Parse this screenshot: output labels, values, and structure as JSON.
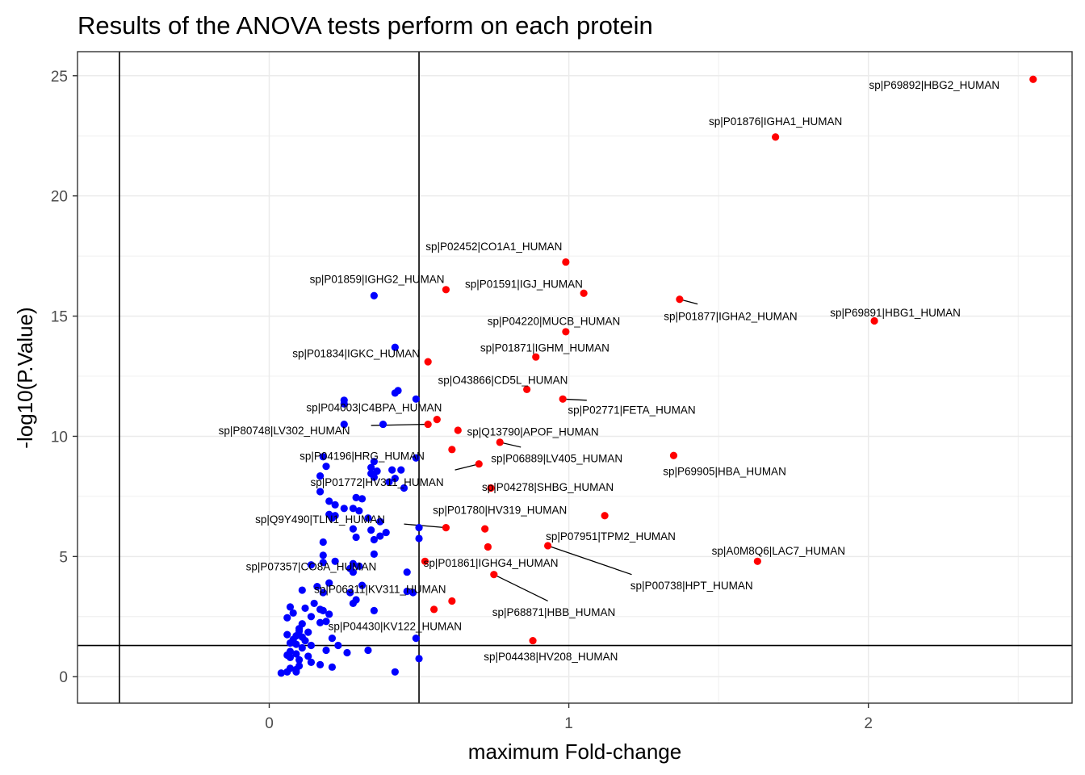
{
  "chart_data": {
    "type": "scatter",
    "title": "Results of the ANOVA tests perform on each protein",
    "xlabel": "maximum Fold-change",
    "ylabel": "-log10(P.Value)",
    "xlim": [
      -0.64,
      2.68
    ],
    "ylim": [
      -1.1,
      26
    ],
    "xticks": [
      0,
      1,
      2
    ],
    "yticks": [
      0,
      5,
      10,
      15,
      20,
      25
    ],
    "grid": true,
    "legend": "none",
    "threshold_lines": {
      "vertical": [
        -0.5,
        0.5
      ],
      "horizontal": [
        1.3
      ]
    },
    "colors": {
      "significant": "#ff0000",
      "non_significant": "#0000ff",
      "lines": "#000000",
      "grid": "#ebebeb"
    },
    "series": [
      {
        "group": "significant",
        "points": [
          {
            "x": 2.55,
            "y": 24.85
          },
          {
            "x": 1.69,
            "y": 22.45
          },
          {
            "x": 0.99,
            "y": 17.25
          },
          {
            "x": 0.59,
            "y": 16.1
          },
          {
            "x": 1.05,
            "y": 15.95
          },
          {
            "x": 1.37,
            "y": 15.7
          },
          {
            "x": 2.02,
            "y": 14.8
          },
          {
            "x": 0.99,
            "y": 14.35
          },
          {
            "x": 0.89,
            "y": 13.3
          },
          {
            "x": 0.53,
            "y": 13.1
          },
          {
            "x": 0.86,
            "y": 11.95
          },
          {
            "x": 0.98,
            "y": 11.55
          },
          {
            "x": 0.56,
            "y": 10.7
          },
          {
            "x": 0.53,
            "y": 10.5
          },
          {
            "x": 0.63,
            "y": 10.25
          },
          {
            "x": 0.77,
            "y": 9.75
          },
          {
            "x": 0.61,
            "y": 9.45
          },
          {
            "x": 1.35,
            "y": 9.2
          },
          {
            "x": 0.7,
            "y": 8.85
          },
          {
            "x": 0.74,
            "y": 7.85
          },
          {
            "x": 1.12,
            "y": 6.7
          },
          {
            "x": 0.59,
            "y": 6.2
          },
          {
            "x": 0.72,
            "y": 6.15
          },
          {
            "x": 0.93,
            "y": 5.45
          },
          {
            "x": 0.73,
            "y": 5.4
          },
          {
            "x": 0.52,
            "y": 4.8
          },
          {
            "x": 1.63,
            "y": 4.8
          },
          {
            "x": 0.75,
            "y": 4.25
          },
          {
            "x": 0.61,
            "y": 3.15
          },
          {
            "x": 0.55,
            "y": 2.8
          },
          {
            "x": 0.88,
            "y": 1.5
          }
        ]
      },
      {
        "group": "non_significant",
        "points": [
          {
            "x": 0.35,
            "y": 15.85
          },
          {
            "x": 0.42,
            "y": 13.7
          },
          {
            "x": 0.42,
            "y": 11.8
          },
          {
            "x": 0.43,
            "y": 11.9
          },
          {
            "x": 0.25,
            "y": 11.35
          },
          {
            "x": 0.25,
            "y": 11.5
          },
          {
            "x": 0.49,
            "y": 11.55
          },
          {
            "x": 0.25,
            "y": 10.5
          },
          {
            "x": 0.38,
            "y": 10.5
          },
          {
            "x": 0.18,
            "y": 9.15
          },
          {
            "x": 0.49,
            "y": 9.1
          },
          {
            "x": 0.19,
            "y": 8.75
          },
          {
            "x": 0.34,
            "y": 8.7
          },
          {
            "x": 0.35,
            "y": 8.95
          },
          {
            "x": 0.36,
            "y": 8.55
          },
          {
            "x": 0.41,
            "y": 8.6
          },
          {
            "x": 0.44,
            "y": 8.6
          },
          {
            "x": 0.34,
            "y": 8.45
          },
          {
            "x": 0.17,
            "y": 8.35
          },
          {
            "x": 0.35,
            "y": 8.3
          },
          {
            "x": 0.4,
            "y": 8.1
          },
          {
            "x": 0.42,
            "y": 8.25
          },
          {
            "x": 0.45,
            "y": 7.85
          },
          {
            "x": 0.17,
            "y": 7.7
          },
          {
            "x": 0.29,
            "y": 7.45
          },
          {
            "x": 0.31,
            "y": 7.4
          },
          {
            "x": 0.2,
            "y": 7.3
          },
          {
            "x": 0.22,
            "y": 7.15
          },
          {
            "x": 0.25,
            "y": 7.0
          },
          {
            "x": 0.28,
            "y": 7.0
          },
          {
            "x": 0.3,
            "y": 6.9
          },
          {
            "x": 0.2,
            "y": 6.75
          },
          {
            "x": 0.22,
            "y": 6.7
          },
          {
            "x": 0.21,
            "y": 6.6
          },
          {
            "x": 0.33,
            "y": 6.6
          },
          {
            "x": 0.37,
            "y": 6.45
          },
          {
            "x": 0.5,
            "y": 6.2
          },
          {
            "x": 0.28,
            "y": 6.15
          },
          {
            "x": 0.34,
            "y": 6.1
          },
          {
            "x": 0.39,
            "y": 6.0
          },
          {
            "x": 0.37,
            "y": 5.85
          },
          {
            "x": 0.29,
            "y": 5.8
          },
          {
            "x": 0.5,
            "y": 5.75
          },
          {
            "x": 0.35,
            "y": 5.7
          },
          {
            "x": 0.18,
            "y": 5.6
          },
          {
            "x": 0.35,
            "y": 5.1
          },
          {
            "x": 0.18,
            "y": 5.05
          },
          {
            "x": 0.22,
            "y": 4.8
          },
          {
            "x": 0.18,
            "y": 4.75
          },
          {
            "x": 0.14,
            "y": 4.65
          },
          {
            "x": 0.28,
            "y": 4.7
          },
          {
            "x": 0.3,
            "y": 4.6
          },
          {
            "x": 0.27,
            "y": 4.5
          },
          {
            "x": 0.28,
            "y": 4.35
          },
          {
            "x": 0.46,
            "y": 4.35
          },
          {
            "x": 0.2,
            "y": 3.9
          },
          {
            "x": 0.31,
            "y": 3.8
          },
          {
            "x": 0.16,
            "y": 3.75
          },
          {
            "x": 0.11,
            "y": 3.6
          },
          {
            "x": 0.27,
            "y": 3.5
          },
          {
            "x": 0.46,
            "y": 3.55
          },
          {
            "x": 0.48,
            "y": 3.5
          },
          {
            "x": 0.18,
            "y": 3.5
          },
          {
            "x": 0.29,
            "y": 3.2
          },
          {
            "x": 0.28,
            "y": 3.05
          },
          {
            "x": 0.15,
            "y": 3.05
          },
          {
            "x": 0.07,
            "y": 2.9
          },
          {
            "x": 0.12,
            "y": 2.85
          },
          {
            "x": 0.17,
            "y": 2.8
          },
          {
            "x": 0.18,
            "y": 2.75
          },
          {
            "x": 0.35,
            "y": 2.75
          },
          {
            "x": 0.08,
            "y": 2.65
          },
          {
            "x": 0.2,
            "y": 2.6
          },
          {
            "x": 0.14,
            "y": 2.5
          },
          {
            "x": 0.06,
            "y": 2.45
          },
          {
            "x": 0.19,
            "y": 2.3
          },
          {
            "x": 0.17,
            "y": 2.25
          },
          {
            "x": 0.11,
            "y": 2.2
          },
          {
            "x": 0.1,
            "y": 2.0
          },
          {
            "x": 0.1,
            "y": 1.9
          },
          {
            "x": 0.13,
            "y": 1.85
          },
          {
            "x": 0.06,
            "y": 1.75
          },
          {
            "x": 0.09,
            "y": 1.7
          },
          {
            "x": 0.11,
            "y": 1.65
          },
          {
            "x": 0.21,
            "y": 1.6
          },
          {
            "x": 0.49,
            "y": 1.6
          },
          {
            "x": 0.08,
            "y": 1.55
          },
          {
            "x": 0.12,
            "y": 1.5
          },
          {
            "x": 0.07,
            "y": 1.4
          },
          {
            "x": 0.09,
            "y": 1.35
          },
          {
            "x": 0.14,
            "y": 1.3
          },
          {
            "x": 0.23,
            "y": 1.3
          },
          {
            "x": 0.11,
            "y": 1.2
          },
          {
            "x": 0.19,
            "y": 1.1
          },
          {
            "x": 0.33,
            "y": 1.1
          },
          {
            "x": 0.07,
            "y": 1.05
          },
          {
            "x": 0.26,
            "y": 1.0
          },
          {
            "x": 0.09,
            "y": 0.95
          },
          {
            "x": 0.06,
            "y": 0.9
          },
          {
            "x": 0.13,
            "y": 0.85
          },
          {
            "x": 0.07,
            "y": 0.8
          },
          {
            "x": 0.5,
            "y": 0.75
          },
          {
            "x": 0.1,
            "y": 0.7
          },
          {
            "x": 0.14,
            "y": 0.6
          },
          {
            "x": 0.17,
            "y": 0.5
          },
          {
            "x": 0.1,
            "y": 0.45
          },
          {
            "x": 0.21,
            "y": 0.4
          },
          {
            "x": 0.07,
            "y": 0.35
          },
          {
            "x": 0.09,
            "y": 0.3
          },
          {
            "x": 0.06,
            "y": 0.2
          },
          {
            "x": 0.09,
            "y": 0.2
          },
          {
            "x": 0.04,
            "y": 0.15
          },
          {
            "x": 0.42,
            "y": 0.2
          }
        ]
      }
    ],
    "annotations": [
      {
        "text": "sp|P69892|HBG2_HUMAN",
        "x": 2.55,
        "y": 24.85,
        "lx": 2.22,
        "ly": 24.62
      },
      {
        "text": "sp|P01876|IGHA1_HUMAN",
        "x": 1.69,
        "y": 22.45,
        "lx": 1.69,
        "ly": 23.12
      },
      {
        "text": "sp|P02452|CO1A1_HUMAN",
        "x": 0.99,
        "y": 17.25,
        "lx": 0.75,
        "ly": 17.9
      },
      {
        "text": "sp|P01859|IGHG2_HUMAN",
        "x": 0.59,
        "y": 16.1,
        "lx": 0.36,
        "ly": 16.55
      },
      {
        "text": "sp|P01591|IGJ_HUMAN",
        "x": 1.05,
        "y": 15.95,
        "lx": 0.85,
        "ly": 16.35
      },
      {
        "text": "sp|P01877|IGHA2_HUMAN",
        "x": 1.37,
        "y": 15.7,
        "lx": 1.54,
        "ly": 15.0,
        "leader": [
          1.43,
          15.5
        ]
      },
      {
        "text": "sp|P69891|HBG1_HUMAN",
        "x": 2.02,
        "y": 14.8,
        "lx": 2.09,
        "ly": 15.15
      },
      {
        "text": "sp|P04220|MUCB_HUMAN",
        "x": 0.99,
        "y": 14.35,
        "lx": 0.95,
        "ly": 14.8
      },
      {
        "text": "sp|P01871|IGHM_HUMAN",
        "x": 0.89,
        "y": 13.3,
        "lx": 0.92,
        "ly": 13.7
      },
      {
        "text": "sp|P01834|IGKC_HUMAN",
        "x": 0.53,
        "y": 13.1,
        "lx": 0.29,
        "ly": 13.45
      },
      {
        "text": "sp|O43866|CD5L_HUMAN",
        "x": 0.86,
        "y": 11.95,
        "lx": 0.78,
        "ly": 12.35
      },
      {
        "text": "sp|P02771|FETA_HUMAN",
        "x": 0.98,
        "y": 11.55,
        "lx": 1.21,
        "ly": 11.1,
        "leader": [
          1.06,
          11.5
        ]
      },
      {
        "text": "sp|P04003|C4BPA_HUMAN",
        "x": 0.56,
        "y": 10.7,
        "lx": 0.35,
        "ly": 11.2
      },
      {
        "text": "sp|P80748|LV302_HUMAN",
        "x": 0.53,
        "y": 10.5,
        "lx": 0.05,
        "ly": 10.25,
        "leader": [
          0.34,
          10.45
        ]
      },
      {
        "text": "sp|Q13790|APOF_HUMAN",
        "x": 0.77,
        "y": 9.75,
        "lx": 0.88,
        "ly": 10.2
      },
      {
        "text": "sp|P06889|LV405_HUMAN",
        "x": 0.77,
        "y": 9.75,
        "lx": 0.96,
        "ly": 9.1,
        "leader": [
          0.84,
          9.55
        ]
      },
      {
        "text": "sp|P04196|HRG_HUMAN",
        "x": 0.61,
        "y": 9.45,
        "lx": 0.31,
        "ly": 9.2
      },
      {
        "text": "sp|P69905|HBA_HUMAN",
        "x": 1.35,
        "y": 9.2,
        "lx": 1.52,
        "ly": 8.55
      },
      {
        "text": "sp|P01772|HV311_HUMAN",
        "x": 0.7,
        "y": 8.85,
        "lx": 0.36,
        "ly": 8.1,
        "leader": [
          0.62,
          8.6
        ]
      },
      {
        "text": "sp|P04278|SHBG_HUMAN",
        "x": 0.74,
        "y": 7.85,
        "lx": 0.93,
        "ly": 7.9
      },
      {
        "text": "sp|P01780|HV319_HUMAN",
        "x": 0.59,
        "y": 6.2,
        "lx": 0.77,
        "ly": 6.95
      },
      {
        "text": "sp|Q9Y490|TLN1_HUMAN",
        "x": 0.59,
        "y": 6.2,
        "lx": 0.17,
        "ly": 6.55,
        "leader": [
          0.45,
          6.35
        ]
      },
      {
        "text": "sp|P07951|TPM2_HUMAN",
        "x": 0.93,
        "y": 5.45,
        "lx": 1.14,
        "ly": 5.85
      },
      {
        "text": "sp|A0M8Q6|LAC7_HUMAN",
        "x": 1.63,
        "y": 4.8,
        "lx": 1.7,
        "ly": 5.25
      },
      {
        "text": "sp|P07357|CO8A_HUMAN",
        "x": 0.52,
        "y": 4.8,
        "lx": 0.14,
        "ly": 4.6
      },
      {
        "text": "sp|P01861|IGHG4_HUMAN",
        "x": 0.52,
        "y": 4.8,
        "lx": 0.74,
        "ly": 4.75
      },
      {
        "text": "sp|P00738|HPT_HUMAN",
        "x": 0.93,
        "y": 5.45,
        "lx": 1.41,
        "ly": 3.8,
        "leader": [
          1.21,
          4.25
        ]
      },
      {
        "text": "sp|P06311|KV311_HUMAN",
        "x": 0.48,
        "y": 3.5,
        "lx": 0.37,
        "ly": 3.65
      },
      {
        "text": "sp|P68871|HBB_HUMAN",
        "x": 0.75,
        "y": 4.25,
        "lx": 0.95,
        "ly": 2.7,
        "leader": [
          0.93,
          3.15
        ]
      },
      {
        "text": "sp|P04430|KV122_HUMAN",
        "x": 0.55,
        "y": 2.8,
        "lx": 0.42,
        "ly": 2.1
      },
      {
        "text": "sp|P04438|HV208_HUMAN",
        "x": 0.88,
        "y": 1.5,
        "lx": 0.94,
        "ly": 0.85
      }
    ]
  }
}
